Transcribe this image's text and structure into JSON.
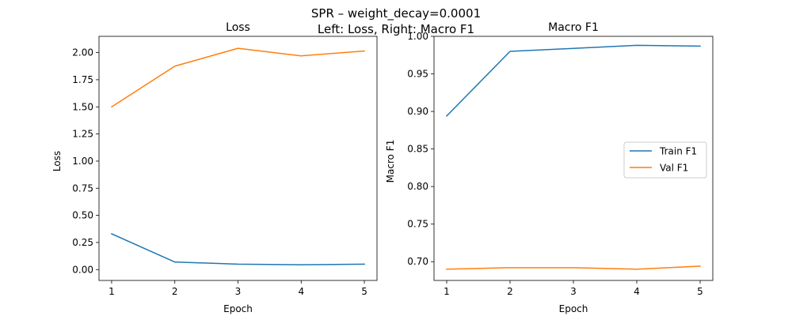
{
  "figure": {
    "suptitle_line1": "SPR – weight_decay=0.0001",
    "suptitle_line2": "Left: Loss, Right: Macro F1"
  },
  "colors": {
    "train": "#1f77b4",
    "val": "#ff7f0e"
  },
  "chart_data": [
    {
      "type": "line",
      "title": "Loss",
      "xlabel": "Epoch",
      "ylabel": "Loss",
      "x": [
        1,
        2,
        3,
        4,
        5
      ],
      "xticks": [
        "1",
        "2",
        "3",
        "4",
        "5"
      ],
      "yticks": [
        "0.00",
        "0.25",
        "0.50",
        "0.75",
        "1.00",
        "1.25",
        "1.50",
        "1.75",
        "2.00"
      ],
      "ylim": [
        -0.1,
        2.15
      ],
      "grid": false,
      "series": [
        {
          "key": "train",
          "values": [
            0.33,
            0.07,
            0.05,
            0.045,
            0.05
          ]
        },
        {
          "key": "val",
          "values": [
            1.5,
            1.875,
            2.04,
            1.97,
            2.015
          ]
        }
      ]
    },
    {
      "type": "line",
      "title": "Macro F1",
      "xlabel": "Epoch",
      "ylabel": "Macro F1",
      "x": [
        1,
        2,
        3,
        4,
        5
      ],
      "xticks": [
        "1",
        "2",
        "3",
        "4",
        "5"
      ],
      "yticks": [
        "0.70",
        "0.75",
        "0.80",
        "0.85",
        "0.90",
        "0.95",
        "1.00"
      ],
      "ylim": [
        0.675,
        1.0
      ],
      "grid": false,
      "legend_position": "center-right",
      "series": [
        {
          "key": "train",
          "name": "Train F1",
          "values": [
            0.894,
            0.98,
            0.984,
            0.988,
            0.987
          ]
        },
        {
          "key": "val",
          "name": "Val F1",
          "values": [
            0.69,
            0.692,
            0.692,
            0.69,
            0.694
          ]
        }
      ]
    }
  ]
}
